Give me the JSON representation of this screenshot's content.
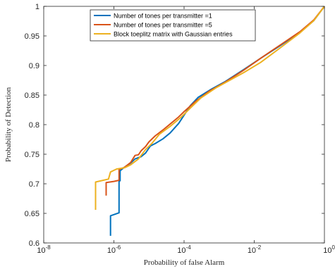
{
  "chart_data": {
    "type": "line",
    "title": "",
    "xlabel": "Probability of false Alarm",
    "ylabel": "Probability of Detection",
    "xscale": "log",
    "xlim": [
      1e-08,
      1
    ],
    "ylim": [
      0.6,
      1
    ],
    "grid": false,
    "legend_position": "top-right",
    "x_ticks": [
      {
        "value": 1e-08,
        "base": "10",
        "exp": "-8"
      },
      {
        "value": 1e-06,
        "base": "10",
        "exp": "-6"
      },
      {
        "value": 0.0001,
        "base": "10",
        "exp": "-4"
      },
      {
        "value": 0.01,
        "base": "10",
        "exp": "-2"
      },
      {
        "value": 1,
        "base": "10",
        "exp": "0"
      }
    ],
    "y_ticks": [
      {
        "value": 0.6,
        "label": "0.6"
      },
      {
        "value": 0.65,
        "label": "0.65"
      },
      {
        "value": 0.7,
        "label": "0.7"
      },
      {
        "value": 0.75,
        "label": "0.75"
      },
      {
        "value": 0.8,
        "label": "0.8"
      },
      {
        "value": 0.85,
        "label": "0.85"
      },
      {
        "value": 0.9,
        "label": "0.9"
      },
      {
        "value": 0.95,
        "label": "0.95"
      },
      {
        "value": 1,
        "label": "1"
      }
    ],
    "series": [
      {
        "name": "Number of tones per transmitter =1",
        "color": "#0072BD",
        "points": [
          [
            8e-07,
            0.612
          ],
          [
            8e-07,
            0.646
          ],
          [
            1.4e-06,
            0.651
          ],
          [
            1.4e-06,
            0.705
          ],
          [
            1.5e-06,
            0.705
          ],
          [
            1.5e-06,
            0.722
          ],
          [
            2e-06,
            0.728
          ],
          [
            3e-06,
            0.735
          ],
          [
            4e-06,
            0.742
          ],
          [
            6e-06,
            0.746
          ],
          [
            8e-06,
            0.752
          ],
          [
            1.1e-05,
            0.764
          ],
          [
            1.5e-05,
            0.768
          ],
          [
            2.5e-05,
            0.776
          ],
          [
            4e-05,
            0.786
          ],
          [
            7e-05,
            0.802
          ],
          [
            0.0001,
            0.816
          ],
          [
            0.00015,
            0.832
          ],
          [
            0.00025,
            0.846
          ],
          [
            0.0006,
            0.86
          ],
          [
            0.0015,
            0.873
          ],
          [
            0.005,
            0.893
          ],
          [
            0.015,
            0.912
          ],
          [
            0.05,
            0.932
          ],
          [
            0.2,
            0.956
          ],
          [
            0.5,
            0.976
          ],
          [
            1,
            1.0
          ]
        ]
      },
      {
        "name": "Number of tones per transmitter =5",
        "color": "#D95319",
        "points": [
          [
            6e-07,
            0.68
          ],
          [
            6e-07,
            0.702
          ],
          [
            1e-06,
            0.704
          ],
          [
            1.4e-06,
            0.706
          ],
          [
            1.4e-06,
            0.724
          ],
          [
            2e-06,
            0.728
          ],
          [
            3e-06,
            0.736
          ],
          [
            4e-06,
            0.748
          ],
          [
            5e-06,
            0.749
          ],
          [
            6e-06,
            0.756
          ],
          [
            8e-06,
            0.763
          ],
          [
            1e-05,
            0.771
          ],
          [
            1.5e-05,
            0.781
          ],
          [
            2.5e-05,
            0.791
          ],
          [
            4e-05,
            0.801
          ],
          [
            7e-05,
            0.813
          ],
          [
            0.0001,
            0.822
          ],
          [
            0.0002,
            0.838
          ],
          [
            0.0005,
            0.856
          ],
          [
            0.0015,
            0.872
          ],
          [
            0.005,
            0.892
          ],
          [
            0.015,
            0.912
          ],
          [
            0.05,
            0.933
          ],
          [
            0.2,
            0.957
          ],
          [
            0.5,
            0.977
          ],
          [
            1,
            1.0
          ]
        ]
      },
      {
        "name": "Block toeplitz matrix with Gaussian entries",
        "color": "#EDB120",
        "points": [
          [
            3e-07,
            0.656
          ],
          [
            3e-07,
            0.703
          ],
          [
            7e-07,
            0.708
          ],
          [
            8e-07,
            0.72
          ],
          [
            1.2e-06,
            0.725
          ],
          [
            2e-06,
            0.727
          ],
          [
            3e-06,
            0.732
          ],
          [
            5e-06,
            0.742
          ],
          [
            8e-06,
            0.758
          ],
          [
            1.2e-05,
            0.768
          ],
          [
            2e-05,
            0.784
          ],
          [
            4e-05,
            0.797
          ],
          [
            8e-05,
            0.812
          ],
          [
            0.00015,
            0.828
          ],
          [
            0.0003,
            0.845
          ],
          [
            0.0008,
            0.862
          ],
          [
            0.002,
            0.875
          ],
          [
            0.005,
            0.888
          ],
          [
            0.015,
            0.905
          ],
          [
            0.05,
            0.928
          ],
          [
            0.2,
            0.955
          ],
          [
            0.5,
            0.976
          ],
          [
            1,
            1.0
          ]
        ]
      }
    ]
  }
}
